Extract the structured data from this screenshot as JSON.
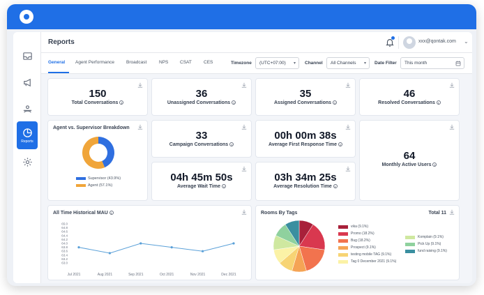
{
  "header": {
    "title": "Reports",
    "user_email": "xxx@qontak.com"
  },
  "sidebar": {
    "items": [
      {
        "icon": "inbox-icon"
      },
      {
        "icon": "megaphone-icon"
      },
      {
        "icon": "agent-icon"
      },
      {
        "icon": "pie-chart-icon",
        "label": "Reports"
      },
      {
        "icon": "gear-icon"
      }
    ]
  },
  "tabs": [
    "General",
    "Agent Performance",
    "Broadcast",
    "NPS",
    "CSAT",
    "CES"
  ],
  "filters": {
    "timezone_label": "Timezone",
    "timezone_value": "(UTC+07:00)",
    "channel_label": "Channel",
    "channel_value": "All Channels",
    "date_label": "Date Filter",
    "date_value": "This month"
  },
  "stats": {
    "total_conversations": {
      "value": "150",
      "label": "Total Conversations"
    },
    "unassigned": {
      "value": "36",
      "label": "Unassigned Conversations"
    },
    "assigned": {
      "value": "35",
      "label": "Assigned Conversations"
    },
    "resolved": {
      "value": "46",
      "label": "Resolved Conversations"
    },
    "campaign": {
      "value": "33",
      "label": "Campaign Conversations"
    },
    "first_response": {
      "value": "00h 00m 38s",
      "label": "Average First Response Time"
    },
    "wait_time": {
      "value": "04h 45m 50s",
      "label": "Average Wait Time"
    },
    "resolution_time": {
      "value": "03h 34m 25s",
      "label": "Average Resolution Time"
    },
    "mau": {
      "value": "64",
      "label": "Monthly Active Users"
    }
  },
  "breakdown": {
    "title": "Agent vs. Supervisor Breakdown",
    "colors": {
      "supervisor": "#2f6fe0",
      "agent": "#f0a53a"
    },
    "legend": [
      {
        "label": "Supervisor",
        "pct": "(43.9%)",
        "value": 43.9
      },
      {
        "label": "Agent",
        "pct": "(57.1%)",
        "value": 57.1
      }
    ]
  },
  "mau_chart": {
    "title": "All Time Historical MAU"
  },
  "rooms_by_tags": {
    "title": "Rooms By Tags",
    "total": "Total 11",
    "tags_left": [
      {
        "label": "vika (9.1%)",
        "color": "#a8203a"
      },
      {
        "label": "Promo (18.2%)",
        "color": "#d9384f"
      },
      {
        "label": "Bug (18.2%)",
        "color": "#f2734e"
      },
      {
        "label": "Prospect (9.1%)",
        "color": "#f5a455"
      },
      {
        "label": "testing mobile TAG (9.1%)",
        "color": "#f7d474"
      },
      {
        "label": "Tag 0 December 2021 (9.1%)",
        "color": "#fbf2a6"
      }
    ],
    "tags_right": [
      {
        "label": "Komplain (9.1%)",
        "color": "#cfe8a0"
      },
      {
        "label": "Pick Up (9.1%)",
        "color": "#8fd19e"
      },
      {
        "label": "fund raising (9.1%)",
        "color": "#3a8fa0"
      }
    ]
  },
  "chart_data": [
    {
      "type": "pie",
      "title": "Agent vs. Supervisor Breakdown",
      "labels": [
        "Supervisor",
        "Agent"
      ],
      "values": [
        43.9,
        57.1
      ]
    },
    {
      "type": "line",
      "title": "All Time Historical MAU",
      "x": [
        "Jul 2021",
        "Aug 2021",
        "Sep 2021",
        "Oct 2021",
        "Nov 2021",
        "Dec 2021"
      ],
      "series": [
        {
          "values": [
            63.8,
            63.5,
            64.0,
            63.8,
            63.6,
            64.0
          ]
        }
      ],
      "yticks": [
        "65.0",
        "64.8",
        "64.6",
        "64.4",
        "64.2",
        "64.0",
        "63.8",
        "63.6",
        "63.4",
        "63.2",
        "63.0"
      ],
      "ylim": [
        63.0,
        65.0
      ]
    },
    {
      "type": "pie",
      "title": "Rooms By Tags",
      "labels": [
        "vika",
        "Promo",
        "Bug",
        "Prospect",
        "testing mobile TAG",
        "Tag 0 December 2021",
        "Komplain",
        "Pick Up",
        "fund raising"
      ],
      "values": [
        9.1,
        18.2,
        18.2,
        9.1,
        9.1,
        9.1,
        9.1,
        9.1,
        9.1
      ]
    }
  ]
}
